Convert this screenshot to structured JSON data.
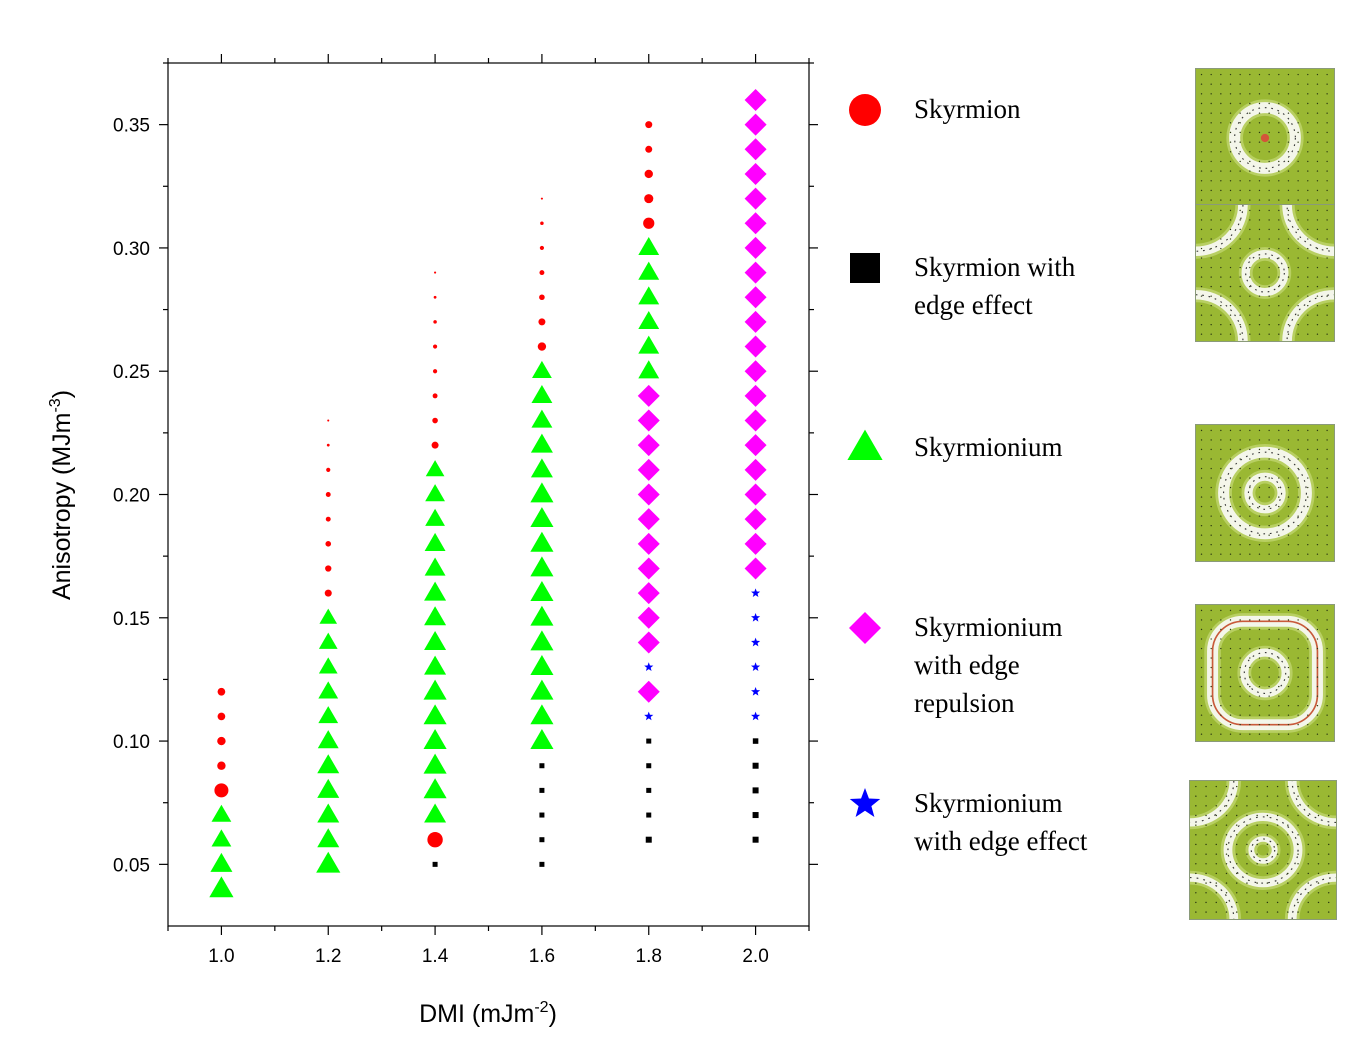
{
  "chart_data": {
    "type": "scatter",
    "title": "",
    "xlabel": "DMI (mJm",
    "xlabel_sup": "-2",
    "xlabel_end": ")",
    "ylabel": "Anisotropy (MJm",
    "ylabel_sup": "-3",
    "ylabel_end": ")",
    "xlim": [
      0.9,
      2.1
    ],
    "ylim": [
      0.025,
      0.375
    ],
    "x_ticks": [
      "1.0",
      "1.2",
      "1.4",
      "1.6",
      "1.8",
      "2.0"
    ],
    "y_ticks": [
      "0.05",
      "0.10",
      "0.15",
      "0.20",
      "0.25",
      "0.30",
      "0.35"
    ],
    "series": [
      {
        "name": "Skyrmion",
        "marker": "circle",
        "color": "#ff0000",
        "points": [
          {
            "x": 1.0,
            "y": 0.08,
            "s": 1.0
          },
          {
            "x": 1.0,
            "y": 0.09,
            "s": 0.6
          },
          {
            "x": 1.0,
            "y": 0.1,
            "s": 0.6
          },
          {
            "x": 1.0,
            "y": 0.11,
            "s": 0.55
          },
          {
            "x": 1.0,
            "y": 0.12,
            "s": 0.55
          },
          {
            "x": 1.2,
            "y": 0.16,
            "s": 0.5
          },
          {
            "x": 1.2,
            "y": 0.17,
            "s": 0.45
          },
          {
            "x": 1.2,
            "y": 0.18,
            "s": 0.4
          },
          {
            "x": 1.2,
            "y": 0.19,
            "s": 0.35
          },
          {
            "x": 1.2,
            "y": 0.2,
            "s": 0.35
          },
          {
            "x": 1.2,
            "y": 0.21,
            "s": 0.3
          },
          {
            "x": 1.2,
            "y": 0.22,
            "s": 0.2
          },
          {
            "x": 1.2,
            "y": 0.23,
            "s": 0.15
          },
          {
            "x": 1.4,
            "y": 0.06,
            "s": 1.1
          },
          {
            "x": 1.4,
            "y": 0.22,
            "s": 0.5
          },
          {
            "x": 1.4,
            "y": 0.23,
            "s": 0.4
          },
          {
            "x": 1.4,
            "y": 0.24,
            "s": 0.35
          },
          {
            "x": 1.4,
            "y": 0.25,
            "s": 0.3
          },
          {
            "x": 1.4,
            "y": 0.26,
            "s": 0.3
          },
          {
            "x": 1.4,
            "y": 0.27,
            "s": 0.25
          },
          {
            "x": 1.4,
            "y": 0.28,
            "s": 0.2
          },
          {
            "x": 1.4,
            "y": 0.29,
            "s": 0.15
          },
          {
            "x": 1.6,
            "y": 0.26,
            "s": 0.6
          },
          {
            "x": 1.6,
            "y": 0.27,
            "s": 0.5
          },
          {
            "x": 1.6,
            "y": 0.28,
            "s": 0.4
          },
          {
            "x": 1.6,
            "y": 0.29,
            "s": 0.35
          },
          {
            "x": 1.6,
            "y": 0.3,
            "s": 0.3
          },
          {
            "x": 1.6,
            "y": 0.31,
            "s": 0.25
          },
          {
            "x": 1.6,
            "y": 0.32,
            "s": 0.15
          },
          {
            "x": 1.8,
            "y": 0.31,
            "s": 0.8
          },
          {
            "x": 1.8,
            "y": 0.32,
            "s": 0.65
          },
          {
            "x": 1.8,
            "y": 0.33,
            "s": 0.6
          },
          {
            "x": 1.8,
            "y": 0.34,
            "s": 0.5
          },
          {
            "x": 1.8,
            "y": 0.35,
            "s": 0.5
          }
        ]
      },
      {
        "name": "Skyrmion with edge effect",
        "marker": "square",
        "color": "#000000",
        "points": [
          {
            "x": 1.4,
            "y": 0.05,
            "s": 0.5
          },
          {
            "x": 1.6,
            "y": 0.05,
            "s": 0.5
          },
          {
            "x": 1.6,
            "y": 0.06,
            "s": 0.5
          },
          {
            "x": 1.6,
            "y": 0.07,
            "s": 0.5
          },
          {
            "x": 1.6,
            "y": 0.08,
            "s": 0.5
          },
          {
            "x": 1.6,
            "y": 0.09,
            "s": 0.5
          },
          {
            "x": 1.8,
            "y": 0.06,
            "s": 0.6
          },
          {
            "x": 1.8,
            "y": 0.07,
            "s": 0.5
          },
          {
            "x": 1.8,
            "y": 0.08,
            "s": 0.5
          },
          {
            "x": 1.8,
            "y": 0.09,
            "s": 0.5
          },
          {
            "x": 1.8,
            "y": 0.1,
            "s": 0.5
          },
          {
            "x": 2.0,
            "y": 0.06,
            "s": 0.6
          },
          {
            "x": 2.0,
            "y": 0.07,
            "s": 0.6
          },
          {
            "x": 2.0,
            "y": 0.08,
            "s": 0.6
          },
          {
            "x": 2.0,
            "y": 0.09,
            "s": 0.6
          },
          {
            "x": 2.0,
            "y": 0.1,
            "s": 0.55
          }
        ]
      },
      {
        "name": "Skyrmionium",
        "marker": "triangle",
        "color": "#00ff00",
        "points": [
          {
            "x": 1.0,
            "y": 0.04,
            "s": 1.1
          },
          {
            "x": 1.0,
            "y": 0.05,
            "s": 1.0
          },
          {
            "x": 1.0,
            "y": 0.06,
            "s": 0.9
          },
          {
            "x": 1.0,
            "y": 0.07,
            "s": 0.9
          },
          {
            "x": 1.2,
            "y": 0.05,
            "s": 1.1
          },
          {
            "x": 1.2,
            "y": 0.06,
            "s": 1.0
          },
          {
            "x": 1.2,
            "y": 0.07,
            "s": 1.0
          },
          {
            "x": 1.2,
            "y": 0.08,
            "s": 1.0
          },
          {
            "x": 1.2,
            "y": 0.09,
            "s": 1.0
          },
          {
            "x": 1.2,
            "y": 0.1,
            "s": 0.95
          },
          {
            "x": 1.2,
            "y": 0.11,
            "s": 0.9
          },
          {
            "x": 1.2,
            "y": 0.12,
            "s": 0.9
          },
          {
            "x": 1.2,
            "y": 0.13,
            "s": 0.85
          },
          {
            "x": 1.2,
            "y": 0.14,
            "s": 0.85
          },
          {
            "x": 1.2,
            "y": 0.15,
            "s": 0.8
          },
          {
            "x": 1.4,
            "y": 0.07,
            "s": 1.0
          },
          {
            "x": 1.4,
            "y": 0.08,
            "s": 1.05
          },
          {
            "x": 1.4,
            "y": 0.09,
            "s": 1.05
          },
          {
            "x": 1.4,
            "y": 0.1,
            "s": 1.05
          },
          {
            "x": 1.4,
            "y": 0.11,
            "s": 1.05
          },
          {
            "x": 1.4,
            "y": 0.12,
            "s": 1.05
          },
          {
            "x": 1.4,
            "y": 0.13,
            "s": 1.0
          },
          {
            "x": 1.4,
            "y": 0.14,
            "s": 1.0
          },
          {
            "x": 1.4,
            "y": 0.15,
            "s": 1.0
          },
          {
            "x": 1.4,
            "y": 0.16,
            "s": 1.0
          },
          {
            "x": 1.4,
            "y": 0.17,
            "s": 0.95
          },
          {
            "x": 1.4,
            "y": 0.18,
            "s": 0.95
          },
          {
            "x": 1.4,
            "y": 0.19,
            "s": 0.9
          },
          {
            "x": 1.4,
            "y": 0.2,
            "s": 0.9
          },
          {
            "x": 1.4,
            "y": 0.21,
            "s": 0.85
          },
          {
            "x": 1.6,
            "y": 0.1,
            "s": 1.05
          },
          {
            "x": 1.6,
            "y": 0.11,
            "s": 1.05
          },
          {
            "x": 1.6,
            "y": 0.12,
            "s": 1.05
          },
          {
            "x": 1.6,
            "y": 0.13,
            "s": 1.05
          },
          {
            "x": 1.6,
            "y": 0.14,
            "s": 1.05
          },
          {
            "x": 1.6,
            "y": 0.15,
            "s": 1.05
          },
          {
            "x": 1.6,
            "y": 0.16,
            "s": 1.05
          },
          {
            "x": 1.6,
            "y": 0.17,
            "s": 1.05
          },
          {
            "x": 1.6,
            "y": 0.18,
            "s": 1.05
          },
          {
            "x": 1.6,
            "y": 0.19,
            "s": 1.05
          },
          {
            "x": 1.6,
            "y": 0.2,
            "s": 1.05
          },
          {
            "x": 1.6,
            "y": 0.21,
            "s": 1.0
          },
          {
            "x": 1.6,
            "y": 0.22,
            "s": 1.0
          },
          {
            "x": 1.6,
            "y": 0.23,
            "s": 0.95
          },
          {
            "x": 1.6,
            "y": 0.24,
            "s": 0.95
          },
          {
            "x": 1.6,
            "y": 0.25,
            "s": 0.9
          },
          {
            "x": 1.8,
            "y": 0.25,
            "s": 0.95
          },
          {
            "x": 1.8,
            "y": 0.26,
            "s": 0.95
          },
          {
            "x": 1.8,
            "y": 0.27,
            "s": 0.95
          },
          {
            "x": 1.8,
            "y": 0.28,
            "s": 0.95
          },
          {
            "x": 1.8,
            "y": 0.29,
            "s": 0.95
          },
          {
            "x": 1.8,
            "y": 0.3,
            "s": 0.95
          }
        ]
      },
      {
        "name": "Skyrmionium with edge repulsion",
        "marker": "diamond",
        "color": "#ff00ff",
        "points": [
          {
            "x": 1.8,
            "y": 0.12,
            "s": 1.0
          },
          {
            "x": 1.8,
            "y": 0.14,
            "s": 1.0
          },
          {
            "x": 1.8,
            "y": 0.15,
            "s": 1.0
          },
          {
            "x": 1.8,
            "y": 0.16,
            "s": 1.0
          },
          {
            "x": 1.8,
            "y": 0.17,
            "s": 1.0
          },
          {
            "x": 1.8,
            "y": 0.18,
            "s": 1.0
          },
          {
            "x": 1.8,
            "y": 0.19,
            "s": 1.0
          },
          {
            "x": 1.8,
            "y": 0.2,
            "s": 1.0
          },
          {
            "x": 1.8,
            "y": 0.21,
            "s": 1.0
          },
          {
            "x": 1.8,
            "y": 0.22,
            "s": 1.0
          },
          {
            "x": 1.8,
            "y": 0.23,
            "s": 1.0
          },
          {
            "x": 1.8,
            "y": 0.24,
            "s": 1.0
          },
          {
            "x": 2.0,
            "y": 0.17,
            "s": 1.0
          },
          {
            "x": 2.0,
            "y": 0.18,
            "s": 1.0
          },
          {
            "x": 2.0,
            "y": 0.19,
            "s": 1.0
          },
          {
            "x": 2.0,
            "y": 0.2,
            "s": 1.0
          },
          {
            "x": 2.0,
            "y": 0.21,
            "s": 1.0
          },
          {
            "x": 2.0,
            "y": 0.22,
            "s": 1.0
          },
          {
            "x": 2.0,
            "y": 0.23,
            "s": 1.0
          },
          {
            "x": 2.0,
            "y": 0.24,
            "s": 1.0
          },
          {
            "x": 2.0,
            "y": 0.25,
            "s": 1.0
          },
          {
            "x": 2.0,
            "y": 0.26,
            "s": 1.0
          },
          {
            "x": 2.0,
            "y": 0.27,
            "s": 1.0
          },
          {
            "x": 2.0,
            "y": 0.28,
            "s": 1.0
          },
          {
            "x": 2.0,
            "y": 0.29,
            "s": 1.0
          },
          {
            "x": 2.0,
            "y": 0.3,
            "s": 1.0
          },
          {
            "x": 2.0,
            "y": 0.31,
            "s": 1.0
          },
          {
            "x": 2.0,
            "y": 0.32,
            "s": 1.0
          },
          {
            "x": 2.0,
            "y": 0.33,
            "s": 1.0
          },
          {
            "x": 2.0,
            "y": 0.34,
            "s": 1.0
          },
          {
            "x": 2.0,
            "y": 0.35,
            "s": 1.0
          },
          {
            "x": 2.0,
            "y": 0.36,
            "s": 1.0
          }
        ]
      },
      {
        "name": "Skyrmionium with edge effect",
        "marker": "star",
        "color": "#0000ff",
        "points": [
          {
            "x": 1.8,
            "y": 0.11,
            "s": 0.6
          },
          {
            "x": 1.8,
            "y": 0.13,
            "s": 0.6
          },
          {
            "x": 2.0,
            "y": 0.11,
            "s": 0.6
          },
          {
            "x": 2.0,
            "y": 0.12,
            "s": 0.6
          },
          {
            "x": 2.0,
            "y": 0.13,
            "s": 0.6
          },
          {
            "x": 2.0,
            "y": 0.14,
            "s": 0.6
          },
          {
            "x": 2.0,
            "y": 0.15,
            "s": 0.6
          },
          {
            "x": 2.0,
            "y": 0.16,
            "s": 0.6
          }
        ]
      }
    ],
    "legend": [
      {
        "marker": "circle",
        "color": "#ff0000",
        "label": "Skyrmion",
        "thumbnail": "skyrmion"
      },
      {
        "marker": "square",
        "color": "#000000",
        "label": "Skyrmion with\nedge effect",
        "thumbnail": "skyrmion-edge"
      },
      {
        "marker": "triangle",
        "color": "#00ff00",
        "label": "Skyrmionium",
        "thumbnail": "skyrmionium"
      },
      {
        "marker": "diamond",
        "color": "#ff00ff",
        "label": "Skyrmionium\nwith edge\nrepulsion",
        "thumbnail": "skyrmionium-repulsion"
      },
      {
        "marker": "star",
        "color": "#0000ff",
        "label": "Skyrmionium\nwith edge effect",
        "thumbnail": "skyrmionium-edge"
      }
    ]
  }
}
